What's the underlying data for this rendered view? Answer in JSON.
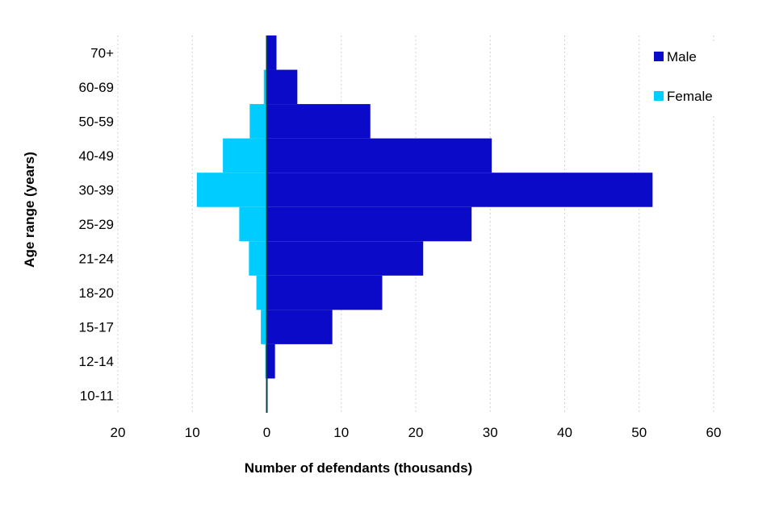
{
  "chart_data": {
    "type": "bar",
    "orientation": "horizontal",
    "layout": "population-pyramid",
    "title": "",
    "xlabel": "Number of defendants (thousands)",
    "ylabel": "Age range (years)",
    "xlim": [
      -20,
      60
    ],
    "x_ticks": [
      -20,
      -10,
      0,
      10,
      20,
      30,
      40,
      50,
      60
    ],
    "x_tick_labels": [
      "20",
      "10",
      "0",
      "10",
      "20",
      "30",
      "40",
      "50",
      "60"
    ],
    "categories": [
      "10-11",
      "12-14",
      "15-17",
      "18-20",
      "21-24",
      "25-29",
      "30-39",
      "40-49",
      "50-59",
      "60-69",
      "70+"
    ],
    "series": [
      {
        "name": "Male",
        "color": "#0a0ac8",
        "values": [
          0.1,
          1.1,
          8.8,
          15.5,
          21.0,
          27.5,
          51.8,
          30.2,
          13.9,
          4.1,
          1.3
        ]
      },
      {
        "name": "Female",
        "color": "#00ccff",
        "values": [
          0.05,
          0.2,
          0.8,
          1.4,
          2.4,
          3.7,
          9.4,
          5.9,
          2.3,
          0.4,
          0.1
        ]
      }
    ],
    "legend": [
      "Male",
      "Female"
    ],
    "legend_position": "top-right",
    "grid": true
  }
}
